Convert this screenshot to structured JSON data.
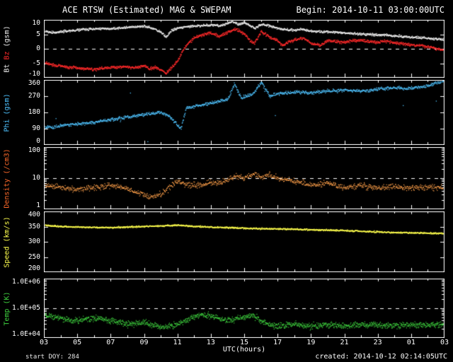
{
  "header": {
    "title": "ACE RTSW (Estimated) MAG & SWEPAM",
    "begin": "Begin: 2014-10-11 03:00:00UTC"
  },
  "footer": {
    "start_doy": "start DOY: 284",
    "created": "created: 2014-10-12 02:14:05UTC"
  },
  "colors": {
    "background": "#000000",
    "axis": "#ffffff",
    "dashed": "#ffffff",
    "bt": "#f0f0f0",
    "bz": "#ff2a2a",
    "phi": "#4fc3ff",
    "density": "#ffa04a",
    "speed": "#ffff4d",
    "temp": "#3fd23f"
  },
  "chart_data": {
    "type": "scatter",
    "title": "ACE RTSW (Estimated) MAG & SWEPAM",
    "xlabel": "UTC(hours)",
    "x_range": [
      3,
      27
    ],
    "x_tick_hours": [
      3,
      5,
      7,
      9,
      11,
      13,
      15,
      17,
      19,
      21,
      23,
      25,
      27
    ],
    "x_tick_labels": [
      "03",
      "05",
      "07",
      "09",
      "11",
      "13",
      "15",
      "17",
      "19",
      "21",
      "23",
      "01",
      "03"
    ],
    "grid": false,
    "panels": [
      {
        "id": "mag",
        "ylabel_parts": [
          {
            "text": "Bt ",
            "color": "#f0f0f0"
          },
          {
            "text": "Bz ",
            "color": "#ff2a2a"
          },
          {
            "text": "(gsm)",
            "color": "#f0f0f0"
          }
        ],
        "scale": "linear",
        "ylim": [
          -10,
          10
        ],
        "yticks": [
          {
            "v": 10,
            "label": "10"
          },
          {
            "v": 5,
            "label": "5"
          },
          {
            "v": 0,
            "label": "0"
          },
          {
            "v": -5,
            "label": "-5"
          },
          {
            "v": -10,
            "label": "-10"
          }
        ],
        "dashed_at": [
          0
        ],
        "series": [
          {
            "name": "Bt",
            "color": "#f0f0f0",
            "noise": 0.4,
            "dots": 1,
            "size": 1.4,
            "step_min": 1.2,
            "stray": 0,
            "x": [
              3,
              3.5,
              4,
              4.5,
              5,
              5.5,
              6,
              6.5,
              7,
              7.5,
              8,
              8.5,
              9,
              9.5,
              10,
              10.3,
              10.6,
              11,
              11.5,
              12,
              12.5,
              13,
              13.5,
              14,
              14.3,
              14.6,
              15,
              15.3,
              15.6,
              16,
              16.5,
              17,
              17.5,
              18,
              18.5,
              19,
              20,
              21,
              22,
              23,
              24,
              25,
              26,
              26.5,
              27
            ],
            "y": [
              6.2,
              5.8,
              6.0,
              6.3,
              6.6,
              6.9,
              7.0,
              7.2,
              7.0,
              7.3,
              7.5,
              7.8,
              8.0,
              7.2,
              5.8,
              4.2,
              6.3,
              7.4,
              7.8,
              8.0,
              8.2,
              8.4,
              8.1,
              9.0,
              9.5,
              8.6,
              9.2,
              8.2,
              7.2,
              8.6,
              8.0,
              7.2,
              6.8,
              6.6,
              6.9,
              6.2,
              6.0,
              5.6,
              5.2,
              5.0,
              4.6,
              4.2,
              3.8,
              3.6,
              3.4
            ]
          },
          {
            "name": "Bz",
            "color": "#ff2a2a",
            "noise": 0.5,
            "dots": 1,
            "size": 1.4,
            "step_min": 1.2,
            "stray": 0,
            "x": [
              3,
              3.5,
              4,
              4.5,
              5,
              5.5,
              6,
              6.5,
              7,
              7.5,
              8,
              8.5,
              9,
              9.3,
              9.6,
              10,
              10.3,
              10.6,
              11,
              11.3,
              11.6,
              12,
              12.5,
              13,
              13.5,
              14,
              14.5,
              15,
              15.3,
              15.6,
              16,
              16.3,
              16.6,
              17,
              17.3,
              17.6,
              18,
              18.5,
              19,
              19.5,
              20,
              20.5,
              21,
              21.5,
              22,
              22.5,
              23,
              23.5,
              24,
              24.5,
              25,
              25.5,
              26,
              26.5,
              27
            ],
            "y": [
              -4.6,
              -5.4,
              -5.8,
              -6.2,
              -6.4,
              -6.8,
              -7.0,
              -6.6,
              -6.4,
              -6.2,
              -6.0,
              -6.4,
              -5.6,
              -6.8,
              -6.2,
              -7.2,
              -8.4,
              -6.4,
              -4.0,
              -0.5,
              2.0,
              4.0,
              5.0,
              5.6,
              4.4,
              6.0,
              7.0,
              5.2,
              3.0,
              2.0,
              6.2,
              5.0,
              3.8,
              3.0,
              1.2,
              2.4,
              3.2,
              4.0,
              2.0,
              1.4,
              3.0,
              2.6,
              2.4,
              3.0,
              3.2,
              2.6,
              2.4,
              2.8,
              2.2,
              1.8,
              1.6,
              1.2,
              0.8,
              0.2,
              -0.4
            ]
          }
        ]
      },
      {
        "id": "phi",
        "ylabel_parts": [
          {
            "text": "Phi (gsm)",
            "color": "#4fc3ff"
          }
        ],
        "scale": "linear",
        "ylim": [
          0,
          360
        ],
        "yticks": [
          {
            "v": 360,
            "label": "360"
          },
          {
            "v": 270,
            "label": "270"
          },
          {
            "v": 180,
            "label": "180"
          },
          {
            "v": 90,
            "label": "90"
          },
          {
            "v": 0,
            "label": "0"
          }
        ],
        "dashed_at": [],
        "series": [
          {
            "name": "Phi",
            "color": "#4fc3ff",
            "noise": 9,
            "dots": 1,
            "size": 1.3,
            "step_min": 1.2,
            "stray": 0.012,
            "x": [
              3,
              3.5,
              4,
              5,
              6,
              7,
              8,
              9,
              10,
              10.5,
              11,
              11.2,
              11.5,
              12,
              12.5,
              13,
              14,
              14.4,
              14.8,
              15,
              15.5,
              16,
              16.5,
              17,
              18,
              19,
              20,
              21,
              22,
              23,
              24,
              25,
              26,
              26.5,
              27
            ],
            "y": [
              105,
              98,
              110,
              118,
              128,
              142,
              158,
              172,
              185,
              160,
              110,
              95,
              205,
              215,
              225,
              235,
              255,
              340,
              260,
              270,
              285,
              350,
              275,
              285,
              295,
              290,
              300,
              305,
              300,
              310,
              320,
              315,
              330,
              345,
              355
            ]
          }
        ]
      },
      {
        "id": "density",
        "ylabel_parts": [
          {
            "text": "Density (/cm3)",
            "color": "#ff6a2a"
          }
        ],
        "scale": "log",
        "ylim": [
          1,
          100
        ],
        "yticks": [
          {
            "v": 100,
            "label": "100"
          },
          {
            "v": 10,
            "label": "10"
          },
          {
            "v": 1,
            "label": "1"
          }
        ],
        "dashed_at": [
          10
        ],
        "series": [
          {
            "name": "Density",
            "color": "#ffa04a",
            "noise": 0.09,
            "dots": 2,
            "size": 1.2,
            "step_min": 2.5,
            "stray": 0,
            "x": [
              3,
              3.5,
              4,
              4.5,
              5,
              5.5,
              6,
              6.5,
              7,
              7.5,
              8,
              8.5,
              9,
              9.5,
              10,
              10.5,
              11,
              11.5,
              12,
              12.5,
              13,
              13.5,
              14,
              14.5,
              15,
              15.5,
              16,
              16.5,
              17,
              17.5,
              18,
              18.5,
              19,
              20,
              21,
              22,
              23,
              24,
              25,
              26,
              27
            ],
            "y": [
              6.0,
              5.5,
              5.0,
              4.6,
              4.4,
              4.8,
              5.2,
              5.6,
              6.0,
              5.4,
              4.8,
              3.4,
              3.0,
              2.6,
              3.2,
              5.0,
              8.0,
              6.5,
              6.0,
              6.8,
              7.5,
              7.0,
              9.0,
              12.0,
              10.0,
              14.0,
              11.0,
              13.0,
              10.0,
              9.0,
              8.0,
              7.0,
              6.0,
              7.0,
              5.0,
              6.0,
              5.0,
              5.5,
              5.0,
              5.5,
              5.0
            ]
          }
        ]
      },
      {
        "id": "speed",
        "ylabel_parts": [
          {
            "text": "Speed (km/s)",
            "color": "#ffff4d"
          }
        ],
        "scale": "linear",
        "ylim": [
          200,
          400
        ],
        "yticks": [
          {
            "v": 400,
            "label": "400"
          },
          {
            "v": 350,
            "label": "350"
          },
          {
            "v": 300,
            "label": "300"
          },
          {
            "v": 250,
            "label": "250"
          },
          {
            "v": 200,
            "label": "200"
          }
        ],
        "dashed_at": [],
        "series": [
          {
            "name": "Speed",
            "color": "#ffff4d",
            "noise": 2.4,
            "dots": 1,
            "size": 1.4,
            "step_min": 1.2,
            "stray": 0,
            "x": [
              3,
              4,
              5,
              6,
              7,
              8,
              9,
              10,
              11,
              12,
              13,
              14,
              15,
              16,
              17,
              18,
              19,
              20,
              21,
              22,
              23,
              24,
              25,
              26,
              27
            ],
            "y": [
              356,
              352,
              350,
              349,
              348,
              350,
              352,
              354,
              356,
              352,
              350,
              348,
              346,
              345,
              344,
              343,
              341,
              340,
              338,
              336,
              334,
              332,
              331,
              330,
              329
            ]
          }
        ]
      },
      {
        "id": "temp",
        "ylabel_parts": [
          {
            "text": "Temp (K)",
            "color": "#3fd23f"
          }
        ],
        "scale": "log",
        "ylim": [
          10000,
          1000000
        ],
        "yticks": [
          {
            "v": 1000000,
            "label": "1.0E+06"
          },
          {
            "v": 100000,
            "label": "1.0E+05"
          },
          {
            "v": 10000,
            "label": "1.0E+04"
          }
        ],
        "dashed_at": [
          100000
        ],
        "series": [
          {
            "name": "Temp",
            "color": "#3fd23f",
            "noise": 0.1,
            "dots": 2,
            "size": 1.2,
            "step_min": 2,
            "stray": 0,
            "x": [
              3,
              3.5,
              4,
              4.5,
              5,
              5.5,
              6,
              6.5,
              7,
              7.5,
              8,
              8.5,
              9,
              9.5,
              10,
              10.5,
              11,
              11.5,
              12,
              12.5,
              13,
              13.5,
              14,
              14.5,
              15,
              15.5,
              16,
              16.5,
              17,
              17.5,
              18,
              19,
              20,
              21,
              22,
              23,
              24,
              25,
              26,
              27
            ],
            "y": [
              62000,
              55000,
              48000,
              42000,
              40000,
              44000,
              48000,
              44000,
              40000,
              34000,
              30000,
              32000,
              35000,
              28000,
              24000,
              27000,
              30000,
              40000,
              52000,
              62000,
              56000,
              46000,
              40000,
              46000,
              52000,
              60000,
              36000,
              28000,
              25000,
              28000,
              30000,
              26000,
              29000,
              26000,
              30000,
              28000,
              26000,
              29000,
              28000,
              30000
            ]
          }
        ]
      }
    ]
  }
}
